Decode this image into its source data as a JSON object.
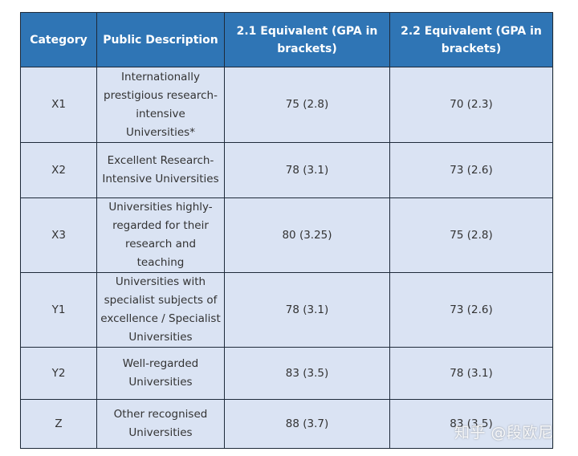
{
  "table": {
    "headers": [
      "Category",
      "Public Description",
      "2.1 Equivalent (GPA in brackets)",
      "2.2 Equivalent (GPA in brackets)"
    ],
    "rows": [
      {
        "category": "X1",
        "description": "Internationally prestigious research-intensive Universities*",
        "equiv_21": "75 (2.8)",
        "equiv_22": "70 (2.3)"
      },
      {
        "category": "X2",
        "description": "Excellent Research-Intensive Universities",
        "equiv_21": "78 (3.1)",
        "equiv_22": "73 (2.6)"
      },
      {
        "category": "X3",
        "description": "Universities highly-regarded for their research and teaching",
        "equiv_21": "80 (3.25)",
        "equiv_22": "75 (2.8)"
      },
      {
        "category": "Y1",
        "description": "Universities with specialist subjects of excellence / Specialist Universities",
        "equiv_21": "78 (3.1)",
        "equiv_22": "73 (2.6)"
      },
      {
        "category": "Y2",
        "description": "Well-regarded Universities",
        "equiv_21": "83 (3.5)",
        "equiv_22": "78 (3.1)"
      },
      {
        "category": "Z",
        "description": "Other recognised Universities",
        "equiv_21": "88 (3.7)",
        "equiv_22": "83 (3.5)"
      }
    ]
  },
  "watermark": {
    "text": "知乎 @段欧尼"
  },
  "colors": {
    "header_bg": "#2f75b5",
    "header_text": "#ffffff",
    "cell_bg": "#dae3f3",
    "cell_text": "#333333",
    "border": "#1e2a3a"
  }
}
